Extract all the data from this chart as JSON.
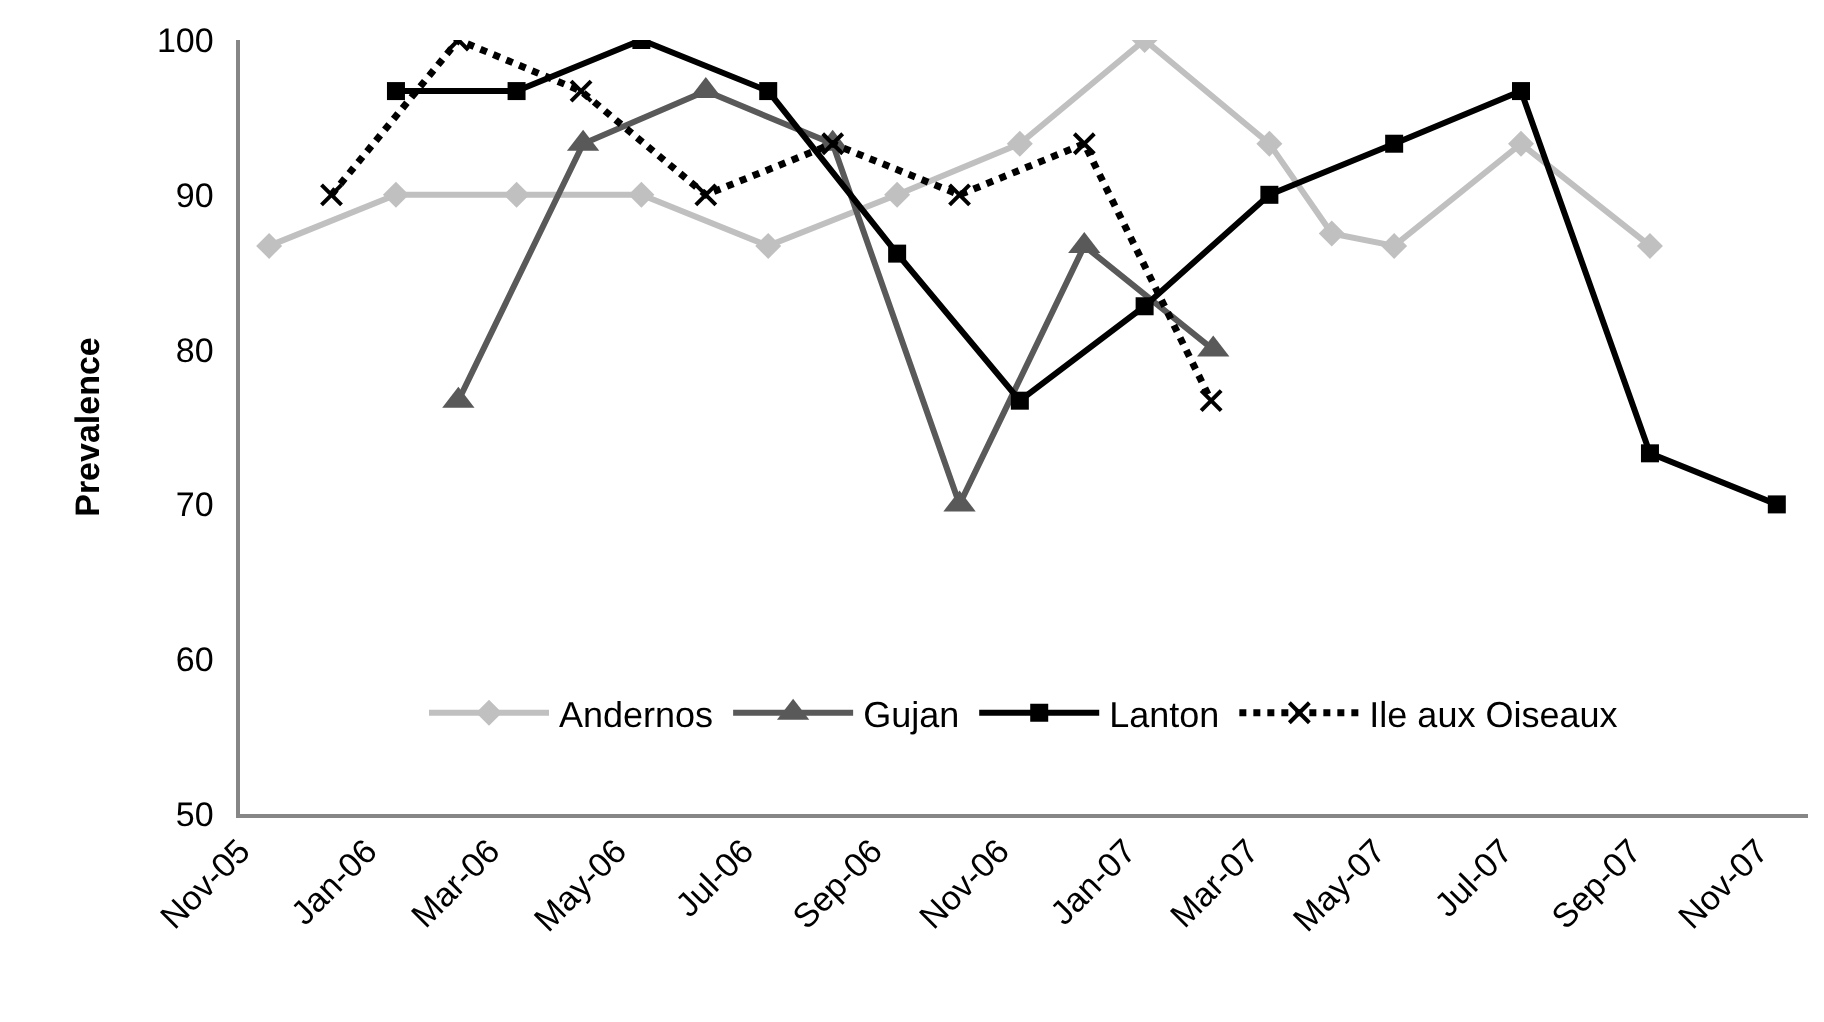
{
  "chart_data": {
    "type": "line",
    "ylabel": "Prevalence",
    "xlim": [
      "2005-11-01",
      "2007-11-25"
    ],
    "xticks": [
      {
        "value": "2005-11-01",
        "label": "Nov-05"
      },
      {
        "value": "2006-01-01",
        "label": "Jan-06"
      },
      {
        "value": "2006-03-01",
        "label": "Mar-06"
      },
      {
        "value": "2006-05-01",
        "label": "May-06"
      },
      {
        "value": "2006-07-01",
        "label": "Jul-06"
      },
      {
        "value": "2006-09-01",
        "label": "Sep-06"
      },
      {
        "value": "2006-11-01",
        "label": "Nov-06"
      },
      {
        "value": "2007-01-01",
        "label": "Jan-07"
      },
      {
        "value": "2007-03-01",
        "label": "Mar-07"
      },
      {
        "value": "2007-05-01",
        "label": "May-07"
      },
      {
        "value": "2007-07-01",
        "label": "Jul-07"
      },
      {
        "value": "2007-09-01",
        "label": "Sep-07"
      },
      {
        "value": "2007-11-01",
        "label": "Nov-07"
      }
    ],
    "ylim": [
      50,
      100
    ],
    "yticks": [
      50,
      60,
      70,
      80,
      90,
      100
    ],
    "legend": "bottom",
    "series": [
      {
        "name": "Andernos",
        "color": "#c0c0c0",
        "marker": "diamond",
        "line_style": "solid",
        "x": [
          "2005-11-15",
          "2006-01-15",
          "2006-03-14",
          "2006-05-13",
          "2006-07-13",
          "2006-09-13",
          "2006-11-11",
          "2007-01-10",
          "2007-03-11",
          "2007-04-10",
          "2007-05-10",
          "2007-07-10",
          "2007-09-10"
        ],
        "values": [
          86.7,
          90,
          90,
          90,
          86.7,
          90,
          93.3,
          100,
          93.3,
          87.5,
          86.7,
          93.3,
          86.7
        ]
      },
      {
        "name": "Gujan",
        "color": "#595959",
        "marker": "triangle",
        "line_style": "solid",
        "x": [
          "2006-02-14",
          "2006-04-15",
          "2006-06-13",
          "2006-08-13",
          "2006-10-13",
          "2006-12-12",
          "2007-02-12"
        ],
        "values": [
          76.7,
          93.3,
          96.7,
          93.3,
          70,
          86.7,
          80
        ]
      },
      {
        "name": "Lanton",
        "color": "#000000",
        "marker": "square",
        "line_style": "solid",
        "x": [
          "2006-01-15",
          "2006-03-14",
          "2006-05-13",
          "2006-07-13",
          "2006-09-13",
          "2006-11-11",
          "2007-01-10",
          "2007-03-11",
          "2007-05-10",
          "2007-07-10",
          "2007-09-10",
          "2007-11-10"
        ],
        "values": [
          96.7,
          96.7,
          100,
          96.7,
          86.2,
          76.7,
          82.8,
          90,
          93.3,
          96.7,
          73.3,
          70
        ]
      },
      {
        "name": "Ile aux Oiseaux",
        "color": "#000000",
        "marker": "cross",
        "line_style": "dotted",
        "x": [
          "2005-12-15",
          "2006-02-14",
          "2006-04-14",
          "2006-06-13",
          "2006-08-13",
          "2006-10-13",
          "2006-12-12",
          "2007-02-11"
        ],
        "values": [
          90,
          100,
          96.7,
          90,
          93.3,
          90,
          93.3,
          76.7
        ]
      }
    ]
  }
}
